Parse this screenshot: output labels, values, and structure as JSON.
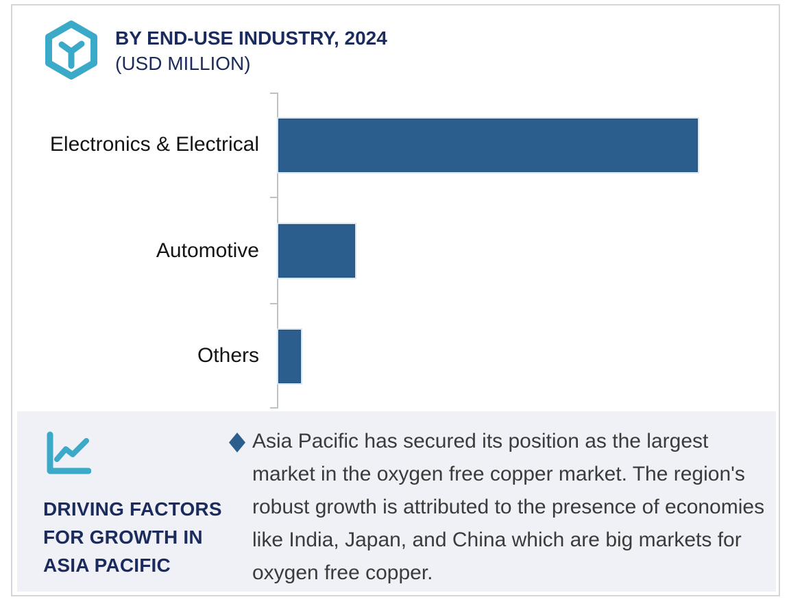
{
  "header": {
    "title_line1": "BY END-USE INDUSTRY, 2024",
    "title_line2": "(USD MILLION)",
    "icon": "hexagon-y-logo"
  },
  "chart_data": {
    "type": "bar",
    "orientation": "horizontal",
    "title": "BY END-USE INDUSTRY, 2024 (USD MILLION)",
    "categories": [
      "Electronics & Electrical",
      "Automotive",
      "Others"
    ],
    "values_relative_pct": [
      100,
      18,
      5
    ],
    "value_note": "No numeric axis labels shown; values estimated from bar lengths relative to largest bar",
    "bar_color": "#2B5E8C",
    "axis": {
      "ticks_visible": true,
      "tick_count": 4,
      "value_labels_visible": false,
      "gridlines": false
    },
    "legend": "none"
  },
  "panel": {
    "icon": "line-chart-icon",
    "heading_line1": "DRIVING FACTORS",
    "heading_line2": "FOR GROWTH IN",
    "heading_line3": "ASIA PACIFIC",
    "bullet_marker": "diamond",
    "bullet_text": "Asia Pacific has secured its position as the largest market in the oxygen free copper market. The region's robust growth is attributed to the presence of economies like India, Japan, and China which are big markets for oxygen free copper."
  },
  "colors": {
    "navy_text": "#1B2C5C",
    "teal_accent": "#3BAAC8",
    "bar_blue": "#2B5E8C",
    "panel_background": "#EFF1F6",
    "body_text": "#3B3B3B",
    "axis_gray": "#BFC1C4"
  }
}
